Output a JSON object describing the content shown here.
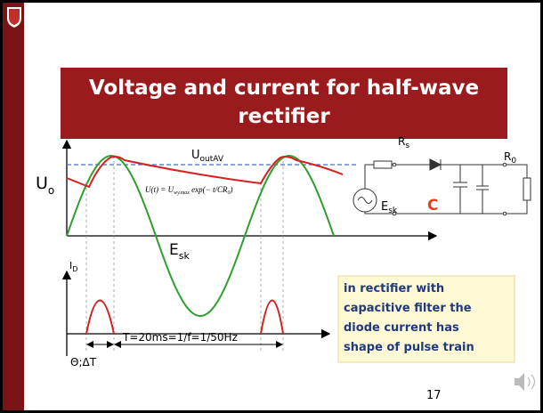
{
  "title": [
    "Voltage and current for half-wave",
    "rectifier"
  ],
  "labels": {
    "u_out": {
      "main": "U",
      "sub": "outAV"
    },
    "u_o": {
      "main": "U",
      "sub": "o"
    },
    "r_s": {
      "main": "R",
      "sub": "s"
    },
    "r_0": {
      "main": "R",
      "sub": "0"
    },
    "e_sk_circuit": {
      "main": "E",
      "sub": "sk"
    },
    "capacitor": "C",
    "i_d": {
      "main": "I",
      "sub": "D"
    },
    "e_sk_wave": {
      "main": "E",
      "sub": "sk"
    },
    "formula": {
      "left": "U(t) = U",
      "sub": "wy.max",
      "right": " exp(− t/CR",
      "sub2": "0",
      "end": ")"
    },
    "period": "T=20ms=1/f=1/50Hz",
    "conduction": "Θ;ΔT"
  },
  "note": [
    "in rectifier with",
    "capacitive filter the",
    "diode current has",
    "shape of pulse train"
  ],
  "page_number": "17"
}
